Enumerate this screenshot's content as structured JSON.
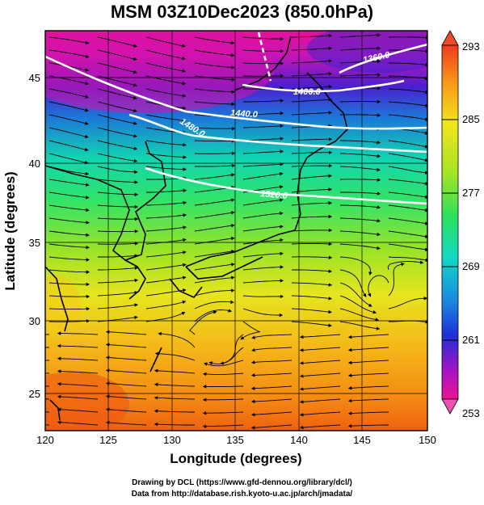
{
  "title": "MSM 03Z10Dec2023 (850.0hPa)",
  "map": {
    "lon_range": [
      120,
      150
    ],
    "lat_range": [
      22.4,
      47.6
    ],
    "lon_ticks": [
      120,
      125,
      130,
      135,
      140,
      145,
      150
    ],
    "lat_ticks": [
      25,
      30,
      35,
      40,
      45
    ],
    "xlabel": "Longitude (degrees)",
    "ylabel": "Latitude  (degrees)",
    "field": "temperature shading with wind streamlines and geopotential height contours",
    "contours": [
      {
        "label": "1360.0"
      },
      {
        "label": "1400.0"
      },
      {
        "label": "1440.0"
      },
      {
        "label": "1480.0"
      },
      {
        "label": "1520.0"
      }
    ]
  },
  "colorbar": {
    "min": 253,
    "max": 293,
    "ticks": [
      "293",
      "285",
      "277",
      "269",
      "261",
      "253"
    ]
  },
  "footer": {
    "line1": "Drawing by DCL (https://www.gfd-dennou.org/library/dcl/)",
    "line2": "Data from http://database.rish.kyoto-u.ac.jp/arch/jmadata/"
  }
}
